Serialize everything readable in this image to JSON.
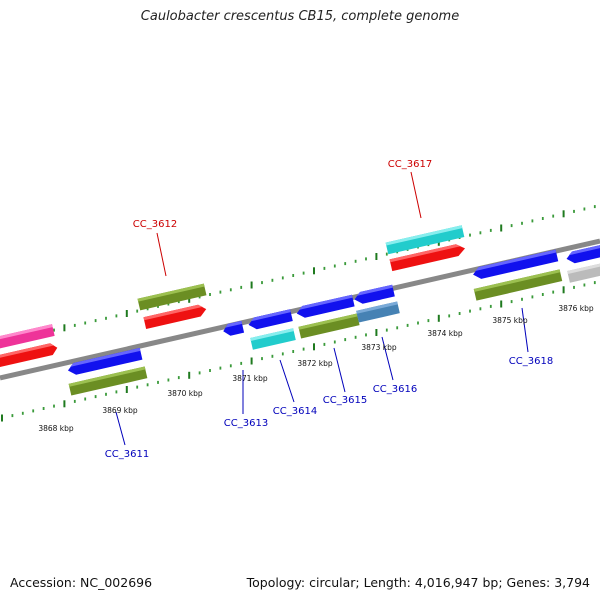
{
  "title": "Caulobacter crescentus CB15, complete genome",
  "footer": {
    "accession": "Accession: NC_002696",
    "summary": "Topology: circular; Length: 4,016,947 bp; Genes: 3,794"
  },
  "colors": {
    "backbone": "#888888",
    "tick": "#2a8a2a",
    "label_forward": "#cc0000",
    "label_reverse": "#0000bb",
    "magenta": "#ee3399",
    "red": "#ee1111",
    "olive": "#6b8e23",
    "blue": "#1111ee",
    "cyan": "#22cccc",
    "steel": "#4682b4",
    "gray": "#bbbbbb"
  },
  "kbp_labels": [
    "3868 kbp",
    "3869 kbp",
    "3870 kbp",
    "3871 kbp",
    "3872 kbp",
    "3873 kbp",
    "3874 kbp",
    "3875 kbp",
    "3876 kbp"
  ],
  "gene_labels": {
    "cc3611": "CC_3611",
    "cc3612": "CC_3612",
    "cc3613": "CC_3613",
    "cc3614": "CC_3614",
    "cc3615": "CC_3615",
    "cc3616": "CC_3616",
    "cc3617": "CC_3617",
    "cc3618": "CC_3618"
  }
}
